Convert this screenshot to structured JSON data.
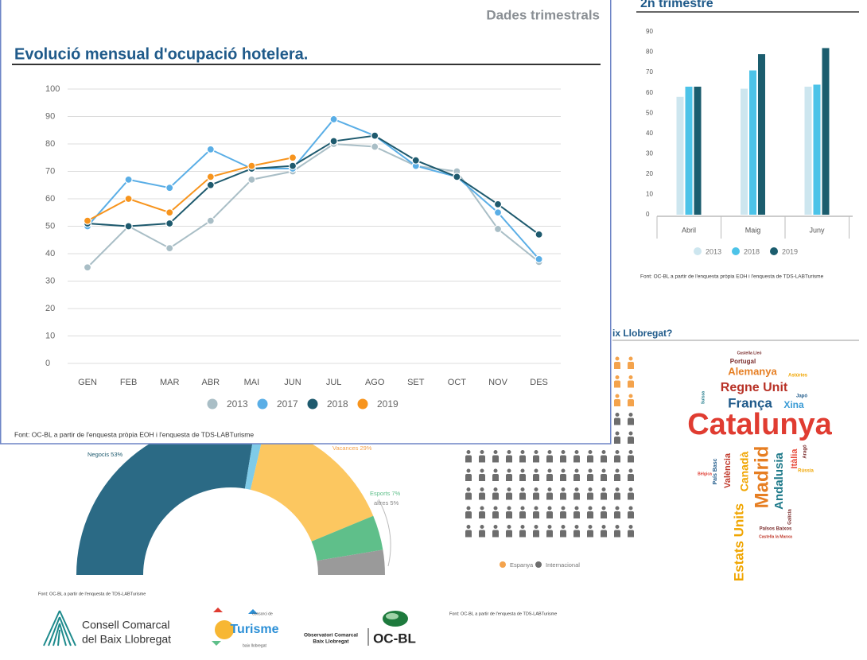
{
  "header": "Dades trimestrals",
  "section_title": "ix Llobregat?",
  "chart_data": [
    {
      "type": "line",
      "title": "Evolució mensual d'ocupació hotelera.",
      "categories": [
        "GEN",
        "FEB",
        "MAR",
        "ABR",
        "MAI",
        "JUN",
        "JUL",
        "AGO",
        "SET",
        "OCT",
        "NOV",
        "DES"
      ],
      "ylim": [
        0,
        100
      ],
      "yticks": [
        0,
        10,
        20,
        30,
        40,
        50,
        60,
        70,
        80,
        90,
        100
      ],
      "grid": true,
      "legend": "bottom",
      "series": [
        {
          "name": "2013",
          "color": "#a9bec6",
          "values": [
            35,
            50,
            42,
            52,
            67,
            70,
            80,
            79,
            72,
            70,
            49,
            37
          ]
        },
        {
          "name": "2017",
          "color": "#5aaee6",
          "values": [
            50,
            67,
            64,
            78,
            71,
            71,
            89,
            83,
            72,
            68,
            55,
            38
          ]
        },
        {
          "name": "2018",
          "color": "#1e5a6e",
          "values": [
            51,
            50,
            51,
            65,
            71,
            72,
            81,
            83,
            74,
            68,
            58,
            47
          ]
        },
        {
          "name": "2019",
          "color": "#f7941d",
          "values": [
            52,
            60,
            55,
            68,
            72,
            75,
            null,
            null,
            null,
            null,
            null,
            null
          ]
        }
      ],
      "source": "Font: OC-BL a partir de l'enquesta pròpia EOH i l'enquesta de TDS-LABTurisme"
    },
    {
      "type": "bar",
      "title": "2n trimestre",
      "categories": [
        "Abril",
        "Maig",
        "Juny"
      ],
      "ylim": [
        0,
        90
      ],
      "yticks": [
        0,
        10,
        20,
        30,
        40,
        50,
        60,
        70,
        80,
        90
      ],
      "grid": false,
      "legend": "bottom",
      "series": [
        {
          "name": "2013",
          "color": "#cde6ef",
          "values": [
            58,
            62,
            63
          ]
        },
        {
          "name": "2018",
          "color": "#4cc3e8",
          "values": [
            63,
            71,
            64
          ]
        },
        {
          "name": "2019",
          "color": "#1b5d6e",
          "values": [
            63,
            79,
            82
          ]
        }
      ],
      "source": "Font: OC-BL a partir de l'enquesta pròpia EOH i l'enquesta de TDS-LABTurisme"
    },
    {
      "type": "pie",
      "donut": true,
      "semicircle": true,
      "values": [
        53,
        2,
        29,
        7,
        5
      ],
      "value_labels": [
        "Negocis 53%",
        null,
        "Vacances 29%",
        "Esports 7%",
        "altres 5%"
      ],
      "colors": [
        "#2b6a85",
        "#7fcbe8",
        "#fcc760",
        "#5fbf8a",
        "#9a9a9a"
      ],
      "source": "Font: OC-BL a partir de l'enquesta de TDS-LABTurisme"
    },
    {
      "type": "pictogram",
      "categories": [
        "Espanya",
        "Internacional"
      ],
      "values": [
        39,
        91
      ],
      "colors": [
        "#f4a34c",
        "#6d6d6d"
      ],
      "legend": "bottom",
      "source": "Font: OC-BL a partir de l'enquesta de TDS-LABTurisme"
    },
    {
      "type": "wordcloud",
      "words": [
        {
          "text": "Catalunya",
          "color": "#e03c31"
        },
        {
          "text": "Regne Unit",
          "color": "#b83227"
        },
        {
          "text": "França",
          "color": "#1f5a8a"
        },
        {
          "text": "Alemanya",
          "color": "#e67e22"
        },
        {
          "text": "Xina",
          "color": "#3a9bd5"
        },
        {
          "text": "Portugal",
          "color": "#7a2c2c"
        },
        {
          "text": "Castella Lleó",
          "color": "#7a2c2c"
        },
        {
          "text": "Astúries",
          "color": "#f0a500"
        },
        {
          "text": "Japó",
          "color": "#1f5a8a"
        },
        {
          "text": "Madrid",
          "color": "#e67e22"
        },
        {
          "text": "Andalusia",
          "color": "#1f7a8a"
        },
        {
          "text": "Canadà",
          "color": "#f0a500"
        },
        {
          "text": "València",
          "color": "#c0392b"
        },
        {
          "text": "Itàlia",
          "color": "#e74c3c"
        },
        {
          "text": "Estats Units",
          "color": "#f0a500"
        },
        {
          "text": "País Basc",
          "color": "#1f5a8a"
        },
        {
          "text": "Galícia",
          "color": "#7a2c2c"
        },
        {
          "text": "Països Baixos",
          "color": "#7a2c2c"
        },
        {
          "text": "Castella la Manxa",
          "color": "#c0392b"
        },
        {
          "text": "Bèlgica",
          "color": "#e03c31"
        },
        {
          "text": "Aragó",
          "color": "#7a2c2c"
        },
        {
          "text": "Rússia",
          "color": "#f0a500"
        },
        {
          "text": "Suïssa",
          "color": "#1f7a8a"
        }
      ]
    }
  ],
  "logos": {
    "consell": [
      "Consell Comarcal",
      "del Baix Llobregat"
    ],
    "consorci": [
      "consorci de",
      "Turisme",
      "baix llobregat"
    ],
    "observatori": [
      "Observatori Comarcal",
      "Baix Llobregat",
      "OC-BL"
    ]
  }
}
